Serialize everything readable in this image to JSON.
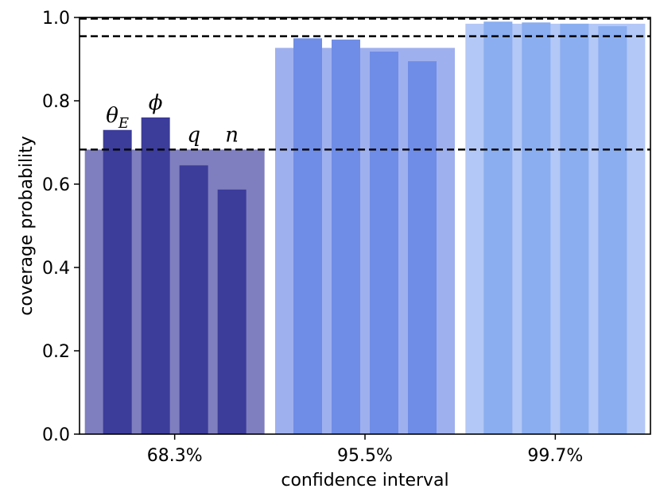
{
  "chart_data": {
    "type": "bar",
    "xlabel": "confidence interval",
    "ylabel": "coverage probability",
    "ylim": [
      0,
      1.0
    ],
    "yticks": [
      "0.0",
      "0.2",
      "0.4",
      "0.6",
      "0.8",
      "1.0"
    ],
    "grid": false,
    "categories": [
      "68.3%",
      "95.5%",
      "99.7%"
    ],
    "param_labels": [
      {
        "main": "θ",
        "sub": "E"
      },
      {
        "main": "ϕ",
        "sub": ""
      },
      {
        "main": "q",
        "sub": ""
      },
      {
        "main": "n",
        "sub": ""
      }
    ],
    "overall": [
      0.683,
      0.927,
      0.985
    ],
    "per_parameter": [
      [
        0.73,
        0.76,
        0.645,
        0.587
      ],
      [
        0.95,
        0.947,
        0.918,
        0.895
      ],
      [
        0.99,
        0.988,
        0.985,
        0.979
      ]
    ],
    "reference_lines": [
      0.683,
      0.955,
      0.997
    ],
    "colors": {
      "overall": [
        "#7f7fbf",
        "#9fb0ee",
        "#b3c8f6"
      ],
      "parameters": [
        "#3c3c9b",
        "#6f8de6",
        "#8aaef0"
      ],
      "reference_line": "#000000"
    }
  }
}
